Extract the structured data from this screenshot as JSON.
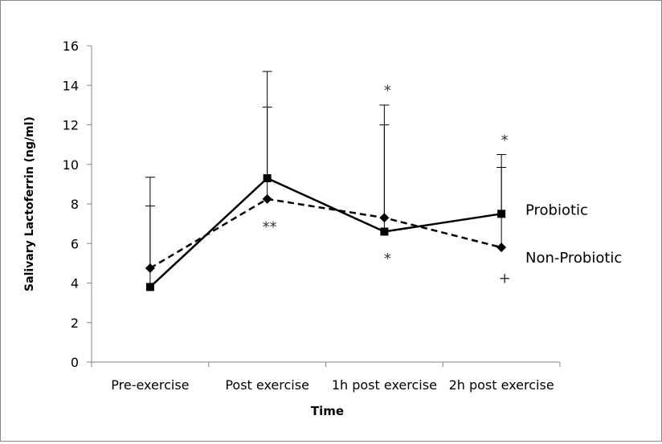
{
  "chart_data": {
    "type": "line",
    "title": "",
    "xlabel": "Time",
    "ylabel": "Salivary Lactoferrin (ng/ml)",
    "ylim": [
      0,
      16
    ],
    "yticks": [
      0,
      2,
      4,
      6,
      8,
      10,
      12,
      14,
      16
    ],
    "ytick_labels": [
      "0",
      "2",
      "4",
      "6",
      "8",
      "10",
      "12",
      "14",
      "16"
    ],
    "categories": [
      "Pre-exercise",
      "Post exercise",
      "1h post exercise",
      "2h post exercise"
    ],
    "grid": false,
    "legend": "right (inline labels)",
    "series": [
      {
        "name": "Probiotic",
        "marker": "square",
        "line_style": "solid",
        "values": [
          3.8,
          9.3,
          6.6,
          7.5
        ],
        "error_upper": [
          7.9,
          14.7,
          13.0,
          10.5
        ]
      },
      {
        "name": "Non-Probiotic",
        "marker": "diamond",
        "line_style": "dashed",
        "values": [
          4.75,
          8.25,
          7.3,
          5.8
        ],
        "error_upper": [
          9.35,
          12.9,
          12.0,
          9.85
        ]
      }
    ],
    "annotations": [
      {
        "text": "**",
        "category": "Post exercise",
        "y": 7.0
      },
      {
        "text": "*",
        "category": "1h post exercise",
        "y": 13.9
      },
      {
        "text": "*",
        "category": "1h post exercise",
        "y": 5.4
      },
      {
        "text": "*",
        "category": "2h post exercise",
        "y": 11.4
      },
      {
        "text": "+",
        "category": "2h post exercise",
        "y": 4.4
      }
    ]
  }
}
